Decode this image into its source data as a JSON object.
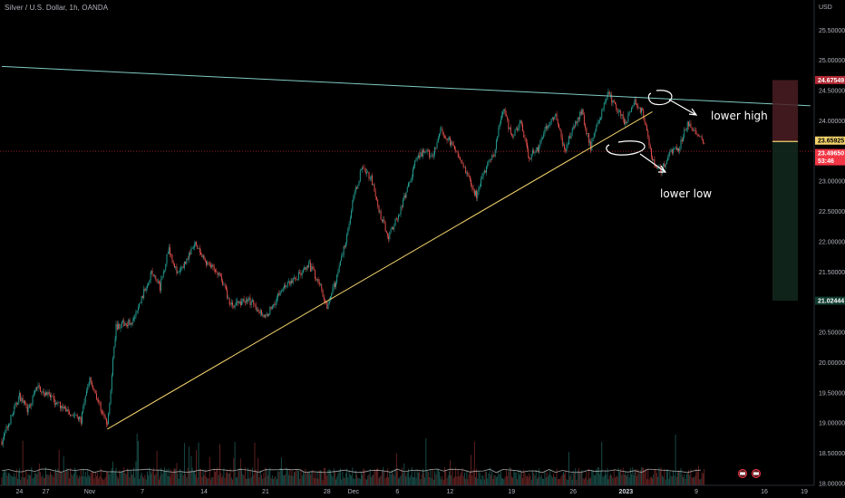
{
  "header": {
    "symbol_title": "Silver / U.S. Dollar, 1h, OANDA"
  },
  "chart_data": {
    "type": "candlestick",
    "currency_label": "USD",
    "y_ticks": [
      "25.50000",
      "25.00000",
      "24.50000",
      "24.00000",
      "23.00000",
      "22.50000",
      "22.00000",
      "21.50000",
      "21.00000",
      "20.50000",
      "20.00000",
      "19.50000",
      "19.00000",
      "18.50000",
      "18.00000"
    ],
    "ylim": [
      17.97,
      26.0
    ],
    "x_ticks": [
      {
        "label": "24",
        "bold": false
      },
      {
        "label": "27",
        "bold": false
      },
      {
        "label": "Nov",
        "bold": false
      },
      {
        "label": "7",
        "bold": false
      },
      {
        "label": "14",
        "bold": false
      },
      {
        "label": "21",
        "bold": false
      },
      {
        "label": "28",
        "bold": false
      },
      {
        "label": "Dec",
        "bold": false
      },
      {
        "label": "6",
        "bold": false
      },
      {
        "label": "12",
        "bold": false
      },
      {
        "label": "19",
        "bold": false
      },
      {
        "label": "26",
        "bold": false
      },
      {
        "label": "2023",
        "bold": true
      },
      {
        "label": "9",
        "bold": false
      },
      {
        "label": "16",
        "bold": false
      },
      {
        "label": "19",
        "bold": false
      }
    ],
    "price_path": [
      [
        "Oct 22",
        18.7
      ],
      [
        "Oct 24",
        19.45
      ],
      [
        "Oct 25",
        19.2
      ],
      [
        "Oct 26",
        19.6
      ],
      [
        "Oct 27",
        19.5
      ],
      [
        "Oct 28",
        19.35
      ],
      [
        "Oct 31",
        19.05
      ],
      [
        "Nov 1",
        19.75
      ],
      [
        "Nov 2",
        19.35
      ],
      [
        "Nov 3",
        18.95
      ],
      [
        "Nov 4",
        20.6
      ],
      [
        "Nov 6",
        20.7
      ],
      [
        "Nov 8",
        21.5
      ],
      [
        "Nov 9",
        21.25
      ],
      [
        "Nov 10",
        21.9
      ],
      [
        "Nov 11",
        21.45
      ],
      [
        "Nov 13",
        21.95
      ],
      [
        "Nov 14",
        21.7
      ],
      [
        "Nov 16",
        21.4
      ],
      [
        "Nov 17",
        20.95
      ],
      [
        "Nov 19",
        21.05
      ],
      [
        "Nov 21",
        20.75
      ],
      [
        "Nov 23",
        21.25
      ],
      [
        "Nov 24",
        21.35
      ],
      [
        "Nov 26",
        21.6
      ],
      [
        "Nov 27",
        21.35
      ],
      [
        "Nov 28",
        20.95
      ],
      [
        "Nov 29",
        21.35
      ],
      [
        "Nov 30",
        21.95
      ],
      [
        "Dec 1",
        22.7
      ],
      [
        "Dec 2",
        23.25
      ],
      [
        "Dec 3",
        23.05
      ],
      [
        "Dec 4",
        22.45
      ],
      [
        "Dec 5",
        22.1
      ],
      [
        "Dec 6",
        22.4
      ],
      [
        "Dec 7",
        22.8
      ],
      [
        "Dec 8",
        23.3
      ],
      [
        "Dec 9",
        23.5
      ],
      [
        "Dec 10",
        23.4
      ],
      [
        "Dec 11",
        23.85
      ],
      [
        "Dec 12",
        23.65
      ],
      [
        "Dec 13",
        23.45
      ],
      [
        "Dec 14",
        23.1
      ],
      [
        "Dec 15",
        22.75
      ],
      [
        "Dec 16",
        23.2
      ],
      [
        "Dec 17",
        23.45
      ],
      [
        "Dec 18",
        24.2
      ],
      [
        "Dec 19",
        23.75
      ],
      [
        "Dec 20",
        23.95
      ],
      [
        "Dec 21",
        23.4
      ],
      [
        "Dec 22",
        23.55
      ],
      [
        "Dec 23",
        23.9
      ],
      [
        "Dec 24",
        24.1
      ],
      [
        "Dec 25",
        23.5
      ],
      [
        "Dec 26",
        23.9
      ],
      [
        "Dec 27",
        24.15
      ],
      [
        "Dec 28",
        23.55
      ],
      [
        "Dec 29",
        24.05
      ],
      [
        "Dec 30",
        24.45
      ],
      [
        "Jan 1",
        23.95
      ],
      [
        "Jan 2",
        24.35
      ],
      [
        "Jan 3",
        24.1
      ],
      [
        "Jan 4",
        23.35
      ],
      [
        "Jan 5",
        23.15
      ],
      [
        "Jan 6",
        23.5
      ],
      [
        "Jan 7",
        23.55
      ],
      [
        "Jan 8",
        23.95
      ],
      [
        "Jan 9",
        23.8
      ],
      [
        "Jan 10",
        23.6
      ]
    ],
    "last_price": 23.4965,
    "countdown": "53:46",
    "price_tags": [
      {
        "value": "24.67549",
        "kind": "stop"
      },
      {
        "value": "23.65925",
        "kind": "entry"
      },
      {
        "value": "23.49650",
        "kind": "last"
      },
      {
        "value": "21.02444",
        "kind": "target"
      }
    ],
    "position": {
      "stop": 24.67549,
      "entry": 23.65925,
      "target": 21.02444
    },
    "lines": [
      {
        "name": "descending resistance",
        "color": "#80cbc4",
        "p1": [
          "Oct 22",
          24.9
        ],
        "p2": [
          "Jan 22",
          24.25
        ]
      },
      {
        "name": "rising support",
        "color": "#f3d36b",
        "p1": [
          "Nov 3",
          18.9
        ],
        "p2": [
          "Jan 4",
          24.15
        ]
      }
    ],
    "annotations": [
      "lower high",
      "lower low"
    ],
    "colors": {
      "up": "#26a69a",
      "down": "#ef5350",
      "background": "#000000",
      "last_price": "#f23645"
    }
  }
}
